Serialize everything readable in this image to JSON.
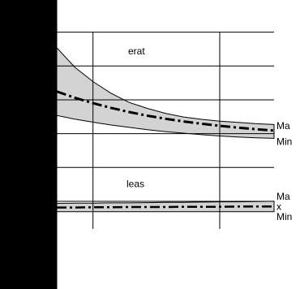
{
  "chart_data": {
    "type": "area",
    "title": "",
    "xlabel": "",
    "ylabel": "",
    "grid": true,
    "colors": {
      "background": "#000000",
      "plot_area": "#ffffff",
      "band_fill": "#d3d3d3",
      "grid": "#000000",
      "curve": "#000000"
    },
    "groups": [
      {
        "region_label": "erat",
        "x": [
          0,
          1,
          2,
          3,
          4,
          5,
          6,
          7,
          8,
          9,
          10,
          11,
          12
        ],
        "band_upper": [
          3.3,
          2.55,
          2.0,
          1.55,
          1.2,
          0.97,
          0.78,
          0.64,
          0.55,
          0.48,
          0.43,
          0.38,
          0.35
        ],
        "band_lower": [
          0.7,
          0.56,
          0.44,
          0.33,
          0.24,
          0.15,
          0.08,
          0.02,
          -0.04,
          -0.09,
          -0.13,
          -0.16,
          -0.18
        ],
        "center": [
          1.62,
          1.38,
          1.17,
          0.99,
          0.83,
          0.69,
          0.57,
          0.47,
          0.38,
          0.3,
          0.23,
          0.17,
          0.12
        ],
        "end_labels": [
          "Ma",
          "Min"
        ]
      },
      {
        "region_label": "leas",
        "x": [
          0,
          1,
          2,
          3,
          4,
          5,
          6,
          7,
          8,
          9,
          10,
          11,
          12
        ],
        "band_upper": [
          -2.68,
          -2.67,
          -2.67,
          -2.66,
          -2.66,
          -2.65,
          -2.64,
          -2.64,
          -2.63,
          -2.62,
          -2.62,
          -2.61,
          -2.6
        ],
        "band_lower": [
          -3.0,
          -3.0,
          -3.0,
          -3.0,
          -3.0,
          -3.0,
          -3.0,
          -3.0,
          -3.0,
          -3.0,
          -3.0,
          -3.0,
          -3.0
        ],
        "center": [
          -2.84,
          -2.84,
          -2.83,
          -2.83,
          -2.82,
          -2.82,
          -2.82,
          -2.81,
          -2.81,
          -2.81,
          -2.8,
          -2.8,
          -2.8
        ],
        "end_labels": [
          "Ma",
          "x",
          "Min"
        ]
      }
    ],
    "xlim": [
      0,
      12
    ],
    "ylim": [
      -3.6,
      4.2
    ],
    "x_gridlines": [
      2,
      9
    ],
    "y_gridlines": [
      -2.6,
      -1.3,
      0,
      1.3,
      2.6,
      3.9
    ]
  }
}
